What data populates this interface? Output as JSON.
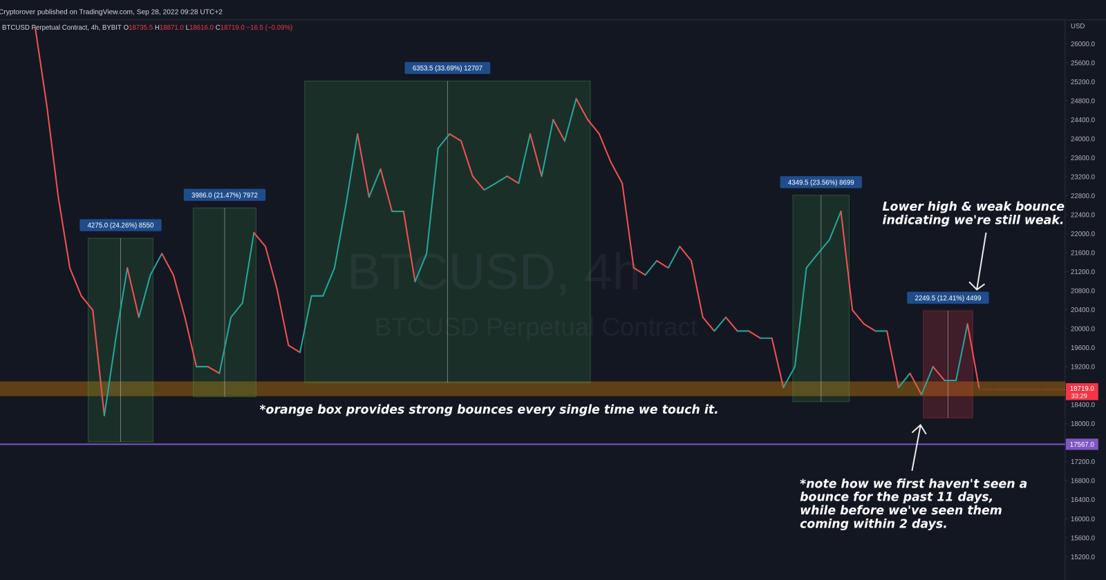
{
  "header": {
    "publisher": "Cryptorover published on TradingView.com, Sep 28, 2022 09:28 UTC+2"
  },
  "symbol": {
    "name": "BTCUSD Perpetual Contract, 4h, BYBIT",
    "open_label": "O",
    "open": "18735.5",
    "high_label": "H",
    "high": "18871.0",
    "low_label": "L",
    "low": "18616.0",
    "close_label": "C",
    "close": "18719.0",
    "change": "−16.5 (−0.09%)"
  },
  "watermark": {
    "symbol": "BTCUSD, 4h",
    "description": "BTCUSD Perpetual Contract"
  },
  "chart_data": {
    "type": "line",
    "axis_unit": "USD",
    "ylim": [
      15000,
      26400
    ],
    "yticks": [
      {
        "value": 15200,
        "label": "15200.0"
      },
      {
        "value": 15600,
        "label": "15600.0"
      },
      {
        "value": 16000,
        "label": "16000.0"
      },
      {
        "value": 16400,
        "label": "16400.0"
      },
      {
        "value": 16800,
        "label": "16800.0"
      },
      {
        "value": 17200,
        "label": "17200.0"
      },
      {
        "value": 17600,
        "label": "17600.0"
      },
      {
        "value": 18000,
        "label": "18000.0"
      },
      {
        "value": 18400,
        "label": "18400.0"
      },
      {
        "value": 18800,
        "label": "18800.0"
      },
      {
        "value": 19200,
        "label": "19200.0"
      },
      {
        "value": 19600,
        "label": "19600.0"
      },
      {
        "value": 20000,
        "label": "20000.0"
      },
      {
        "value": 20400,
        "label": "20400.0"
      },
      {
        "value": 20800,
        "label": "20800.0"
      },
      {
        "value": 21200,
        "label": "21200.0"
      },
      {
        "value": 21600,
        "label": "21600.0"
      },
      {
        "value": 22000,
        "label": "22000.0"
      },
      {
        "value": 22400,
        "label": "22400.0"
      },
      {
        "value": 22800,
        "label": "22800.0"
      },
      {
        "value": 23200,
        "label": "23200.0"
      },
      {
        "value": 23600,
        "label": "23600.0"
      },
      {
        "value": 24000,
        "label": "24000.0"
      },
      {
        "value": 24400,
        "label": "24400.0"
      },
      {
        "value": 24800,
        "label": "24800.0"
      },
      {
        "value": 25200,
        "label": "25200.0"
      },
      {
        "value": 25600,
        "label": "25600.0"
      },
      {
        "value": 26000,
        "label": "26000.0"
      }
    ],
    "values": [
      26330,
      24700,
      22770,
      21280,
      20690,
      20390,
      18170,
      19800,
      21280,
      20240,
      21130,
      21580,
      21130,
      20240,
      19200,
      19200,
      19060,
      20240,
      20540,
      22020,
      21730,
      20840,
      19650,
      19500,
      20690,
      20690,
      21280,
      22620,
      24100,
      22770,
      23360,
      22470,
      22470,
      20990,
      21580,
      23800,
      24100,
      23950,
      23210,
      22920,
      23060,
      23210,
      23060,
      24100,
      23210,
      24400,
      23950,
      24840,
      24400,
      24100,
      23510,
      23060,
      21280,
      21130,
      21430,
      21280,
      21730,
      21430,
      20240,
      19950,
      20240,
      19950,
      19950,
      19800,
      19800,
      18760,
      19200,
      21280,
      21580,
      21870,
      22470,
      20390,
      20100,
      19950,
      19950,
      18760,
      19060,
      18610,
      19200,
      18910,
      18910,
      20100,
      18760
    ],
    "zone": [
      18580,
      18890
    ],
    "support": {
      "value": 17567,
      "label": "17567.0"
    },
    "last_price": {
      "value": 18719,
      "label": "18719.0",
      "countdown": "33:29"
    },
    "measurements": [
      {
        "low": 17617,
        "high": 21905,
        "label": "4275.0 (24.26%) 8550"
      },
      {
        "low": 18567,
        "high": 22543,
        "label": "3986.0 (21.47%) 7972"
      },
      {
        "low": 18864,
        "high": 25214,
        "label": "6353.5 (33.69%) 12707"
      },
      {
        "low": 18463,
        "high": 22810,
        "label": "4349.5 (23.56%) 8699"
      },
      {
        "low": 18122,
        "high": 20377,
        "label": "2249.5 (12.41%) 4499"
      }
    ]
  },
  "annotations": {
    "top_right": [
      "Lower high & weak bounce",
      "indicating we're still weak."
    ],
    "orange_box": "*orange box provides strong bounces every single time we touch it.",
    "bottom_right": [
      "*note how we first haven't seen a",
      "bounce for the past 11 days,",
      "while before we've seen them",
      "coming within 2 days."
    ]
  }
}
